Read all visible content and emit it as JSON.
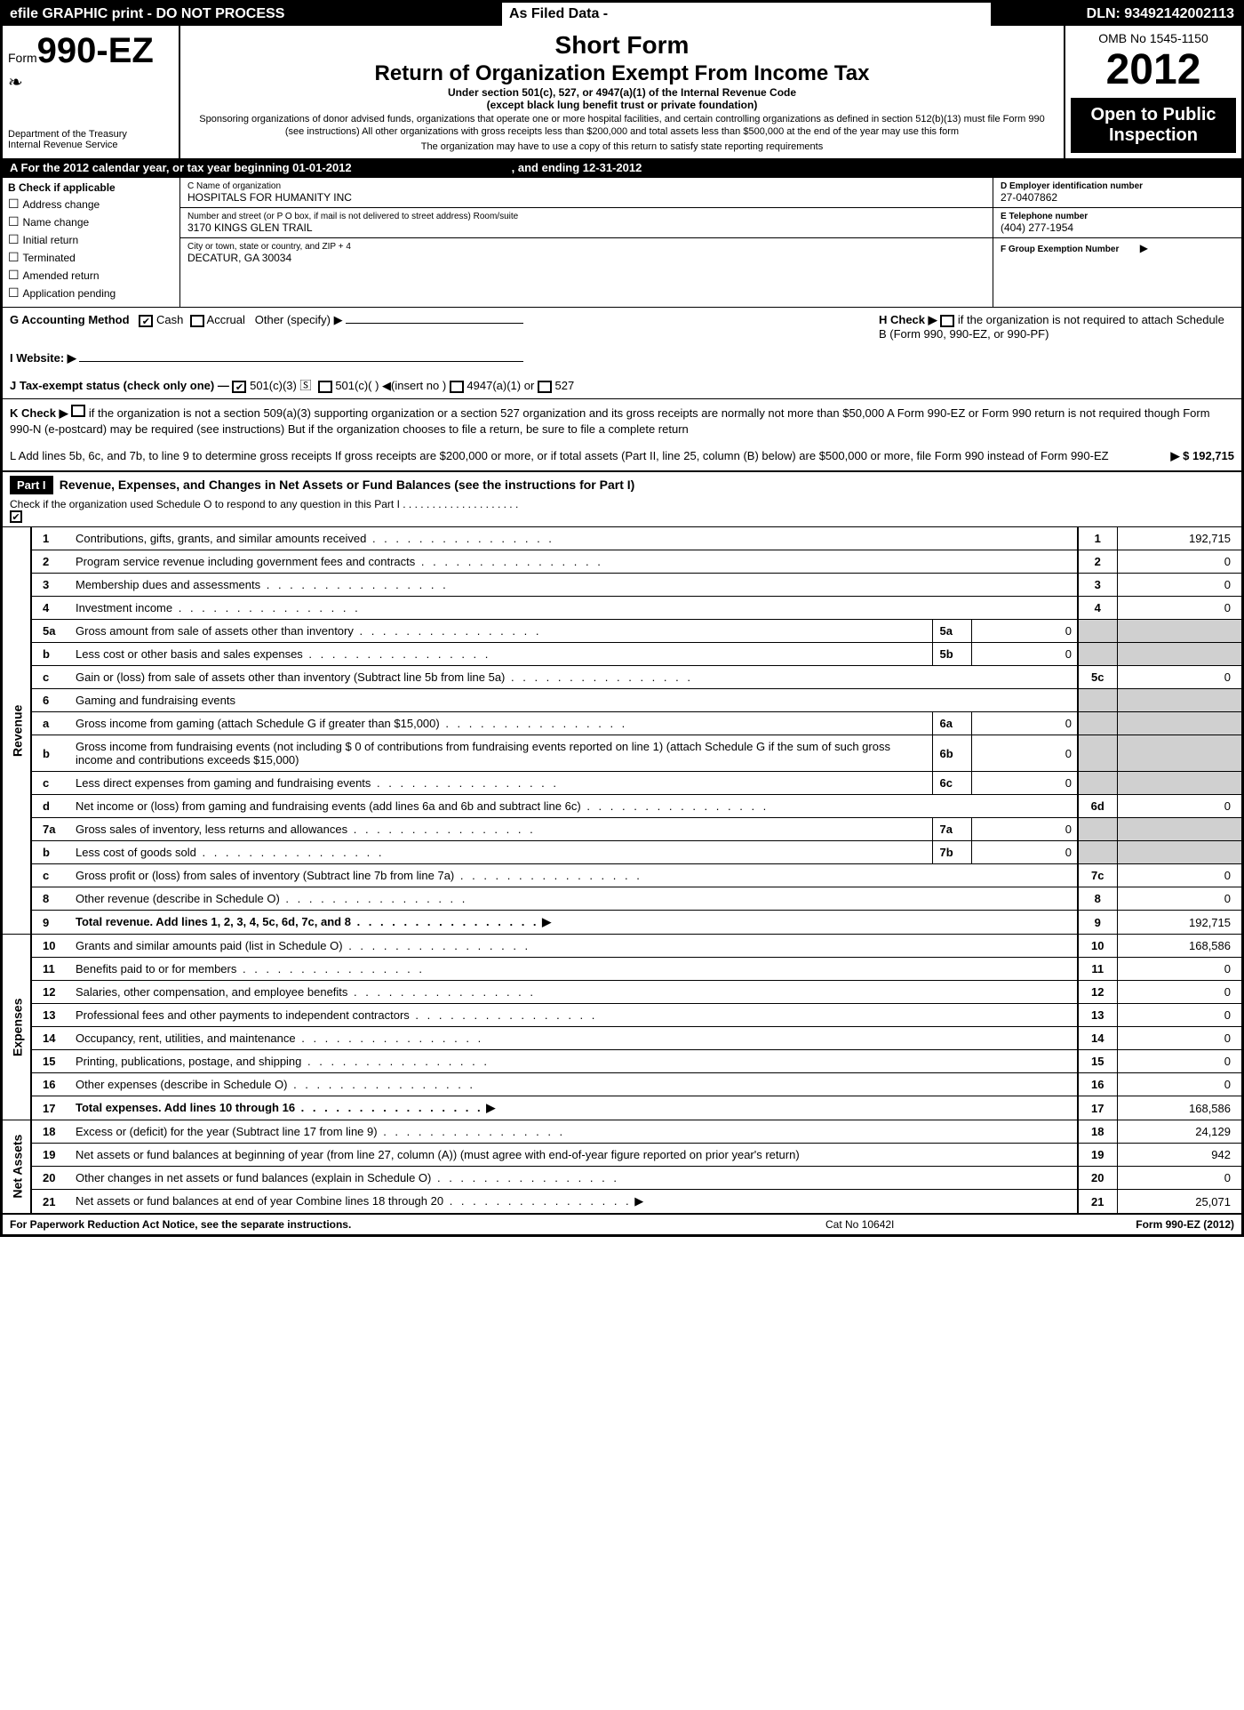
{
  "topbar": {
    "left": "efile GRAPHIC print - DO NOT PROCESS",
    "mid": "As Filed Data -",
    "right": "DLN: 93492142002113"
  },
  "header": {
    "form_prefix": "Form",
    "form_no": "990-EZ",
    "dept1": "Department of the Treasury",
    "dept2": "Internal Revenue Service",
    "short": "Short Form",
    "return_title": "Return of Organization Exempt From Income Tax",
    "subtitle1": "Under section 501(c), 527, or 4947(a)(1) of the Internal Revenue Code",
    "subtitle2": "(except black lung benefit trust or private foundation)",
    "note1": "Sponsoring organizations of donor advised funds, organizations that operate one or more hospital facilities, and certain controlling organizations as defined in section 512(b)(13) must file Form 990 (see instructions) All other organizations with gross receipts less than $200,000 and total assets less than $500,000 at the end of the year may use this form",
    "note2": "The organization may have to use a copy of this return to satisfy state reporting requirements",
    "omb": "OMB No 1545-1150",
    "year": "2012",
    "open_pub1": "Open to Public",
    "open_pub2": "Inspection"
  },
  "row_a": {
    "text1": "A  For the 2012 calendar year, or tax year beginning 01-01-2012",
    "text2": ", and ending 12-31-2012"
  },
  "sec_b": {
    "title": "B  Check if applicable",
    "items": [
      "Address change",
      "Name change",
      "Initial return",
      "Terminated",
      "Amended return",
      "Application pending"
    ]
  },
  "sec_c": {
    "c_lbl": "C Name of organization",
    "c_val": "HOSPITALS FOR HUMANITY INC",
    "addr_lbl": "Number and street (or P  O  box, if mail is not delivered to street address) Room/suite",
    "addr_val": "3170 KINGS GLEN TRAIL",
    "city_lbl": "City or town, state or country, and ZIP + 4",
    "city_val": "DECATUR, GA  30034"
  },
  "sec_d": {
    "d_lbl": "D Employer identification number",
    "d_val": "27-0407862",
    "e_lbl": "E Telephone number",
    "e_val": "(404) 277-1954",
    "f_lbl": "F Group Exemption Number",
    "f_arrow": "▶"
  },
  "g": {
    "label": "G Accounting Method",
    "cash": "Cash",
    "accrual": "Accrual",
    "other": "Other (specify) ▶"
  },
  "h": {
    "text1": "H  Check ▶",
    "text2": "if the organization is not required to attach Schedule B (Form 990, 990-EZ, or 990-PF)"
  },
  "i": {
    "label": "I Website: ▶"
  },
  "j": {
    "label": "J Tax-exempt status (check only one) —",
    "o1": "501(c)(3)",
    "o2": "501(c)(  ) ◀(insert no )",
    "o3": "4947(a)(1) or",
    "o4": "527"
  },
  "k": {
    "label": "K Check ▶",
    "text": "if the organization is not a section 509(a)(3) supporting organization or a section 527 organization and its gross receipts are normally not more than $50,000  A Form 990-EZ or Form 990 return is not required though Form 990-N (e-postcard) may be required (see instructions)  But if the organization chooses to file a return, be sure to file a complete return"
  },
  "l": {
    "text": "L Add lines 5b, 6c, and 7b, to line 9 to determine gross receipts  If gross receipts are $200,000 or more, or if total assets (Part II, line 25, column (B) below) are $500,000 or more, file Form 990 instead of Form 990-EZ",
    "amount": "▶ $ 192,715"
  },
  "part1": {
    "hdr": "Part I",
    "title": "Revenue, Expenses, and Changes in Net Assets or Fund Balances (see the instructions for Part I)",
    "chk_text": "Check if the organization used Schedule O to respond to any question in this Part I  . . . . . . . . . . . . . . . . . . . .",
    "chk_val": "✔"
  },
  "sections": {
    "revenue": "Revenue",
    "expenses": "Expenses",
    "netassets": "Net Assets"
  },
  "lines": [
    {
      "n": "1",
      "d": "Contributions, gifts, grants, and similar amounts received",
      "ln": "1",
      "v": "192,715",
      "sec": "rev"
    },
    {
      "n": "2",
      "d": "Program service revenue including government fees and contracts",
      "ln": "2",
      "v": "0",
      "sec": "rev"
    },
    {
      "n": "3",
      "d": "Membership dues and assessments",
      "ln": "3",
      "v": "0",
      "sec": "rev"
    },
    {
      "n": "4",
      "d": "Investment income",
      "ln": "4",
      "v": "0",
      "sec": "rev"
    },
    {
      "n": "5a",
      "d": "Gross amount from sale of assets other than inventory",
      "sn": "5a",
      "sv": "0",
      "sec": "rev",
      "grey": true
    },
    {
      "n": "b",
      "d": "Less  cost or other basis and sales expenses",
      "sn": "5b",
      "sv": "0",
      "sec": "rev",
      "grey": true
    },
    {
      "n": "c",
      "d": "Gain or (loss) from sale of assets other than inventory (Subtract line 5b from line 5a)",
      "ln": "5c",
      "v": "0",
      "sec": "rev"
    },
    {
      "n": "6",
      "d": "Gaming and fundraising events",
      "sec": "rev",
      "grey": true,
      "noval": true
    },
    {
      "n": "a",
      "d": "Gross income from gaming (attach Schedule G if greater than $15,000)",
      "sn": "6a",
      "sv": "0",
      "sec": "rev",
      "grey": true
    },
    {
      "n": "b",
      "d": "Gross income from fundraising events (not including $  0                    of contributions from fundraising events reported on line 1) (attach Schedule G if the sum of such gross income and contributions exceeds $15,000)",
      "sn": "6b",
      "sv": "0",
      "sec": "rev",
      "grey": true,
      "nodots": true
    },
    {
      "n": "c",
      "d": "Less  direct expenses from gaming and fundraising events",
      "sn": "6c",
      "sv": "0",
      "sec": "rev",
      "grey": true
    },
    {
      "n": "d",
      "d": "Net income or (loss) from gaming and fundraising events (add lines 6a and 6b and subtract line 6c)",
      "ln": "6d",
      "v": "0",
      "sec": "rev"
    },
    {
      "n": "7a",
      "d": "Gross sales of inventory, less returns and allowances",
      "sn": "7a",
      "sv": "0",
      "sec": "rev",
      "grey": true
    },
    {
      "n": "b",
      "d": "Less  cost of goods sold",
      "sn": "7b",
      "sv": "0",
      "sec": "rev",
      "grey": true
    },
    {
      "n": "c",
      "d": "Gross profit or (loss) from sales of inventory (Subtract line 7b from line 7a)",
      "ln": "7c",
      "v": "0",
      "sec": "rev"
    },
    {
      "n": "8",
      "d": "Other revenue (describe in Schedule O)",
      "ln": "8",
      "v": "0",
      "sec": "rev"
    },
    {
      "n": "9",
      "d": "Total revenue. Add lines 1, 2, 3, 4, 5c, 6d, 7c, and 8",
      "ln": "9",
      "v": "192,715",
      "sec": "rev",
      "bold": true,
      "arrow": true
    },
    {
      "n": "10",
      "d": "Grants and similar amounts paid (list in Schedule O)",
      "ln": "10",
      "v": "168,586",
      "sec": "exp"
    },
    {
      "n": "11",
      "d": "Benefits paid to or for members",
      "ln": "11",
      "v": "0",
      "sec": "exp"
    },
    {
      "n": "12",
      "d": "Salaries, other compensation, and employee benefits",
      "ln": "12",
      "v": "0",
      "sec": "exp"
    },
    {
      "n": "13",
      "d": "Professional fees and other payments to independent contractors",
      "ln": "13",
      "v": "0",
      "sec": "exp"
    },
    {
      "n": "14",
      "d": "Occupancy, rent, utilities, and maintenance",
      "ln": "14",
      "v": "0",
      "sec": "exp"
    },
    {
      "n": "15",
      "d": "Printing, publications, postage, and shipping",
      "ln": "15",
      "v": "0",
      "sec": "exp"
    },
    {
      "n": "16",
      "d": "Other expenses (describe in Schedule O)",
      "ln": "16",
      "v": "0",
      "sec": "exp"
    },
    {
      "n": "17",
      "d": "Total expenses. Add lines 10 through 16",
      "ln": "17",
      "v": "168,586",
      "sec": "exp",
      "bold": true,
      "arrow": true
    },
    {
      "n": "18",
      "d": "Excess or (deficit) for the year (Subtract line 17 from line 9)",
      "ln": "18",
      "v": "24,129",
      "sec": "na"
    },
    {
      "n": "19",
      "d": "Net assets or fund balances at beginning of year (from line 27, column (A)) (must agree with end-of-year figure reported on prior year's return)",
      "ln": "19",
      "v": "942",
      "sec": "na",
      "nodots": true
    },
    {
      "n": "20",
      "d": "Other changes in net assets or fund balances (explain in Schedule O)",
      "ln": "20",
      "v": "0",
      "sec": "na"
    },
    {
      "n": "21",
      "d": "Net assets or fund balances at end of year  Combine lines 18 through 20",
      "ln": "21",
      "v": "25,071",
      "sec": "na",
      "arrow": true
    }
  ],
  "footer": {
    "left": "For Paperwork Reduction Act Notice, see the separate instructions.",
    "mid": "Cat No  10642I",
    "right": "Form 990-EZ (2012)"
  }
}
